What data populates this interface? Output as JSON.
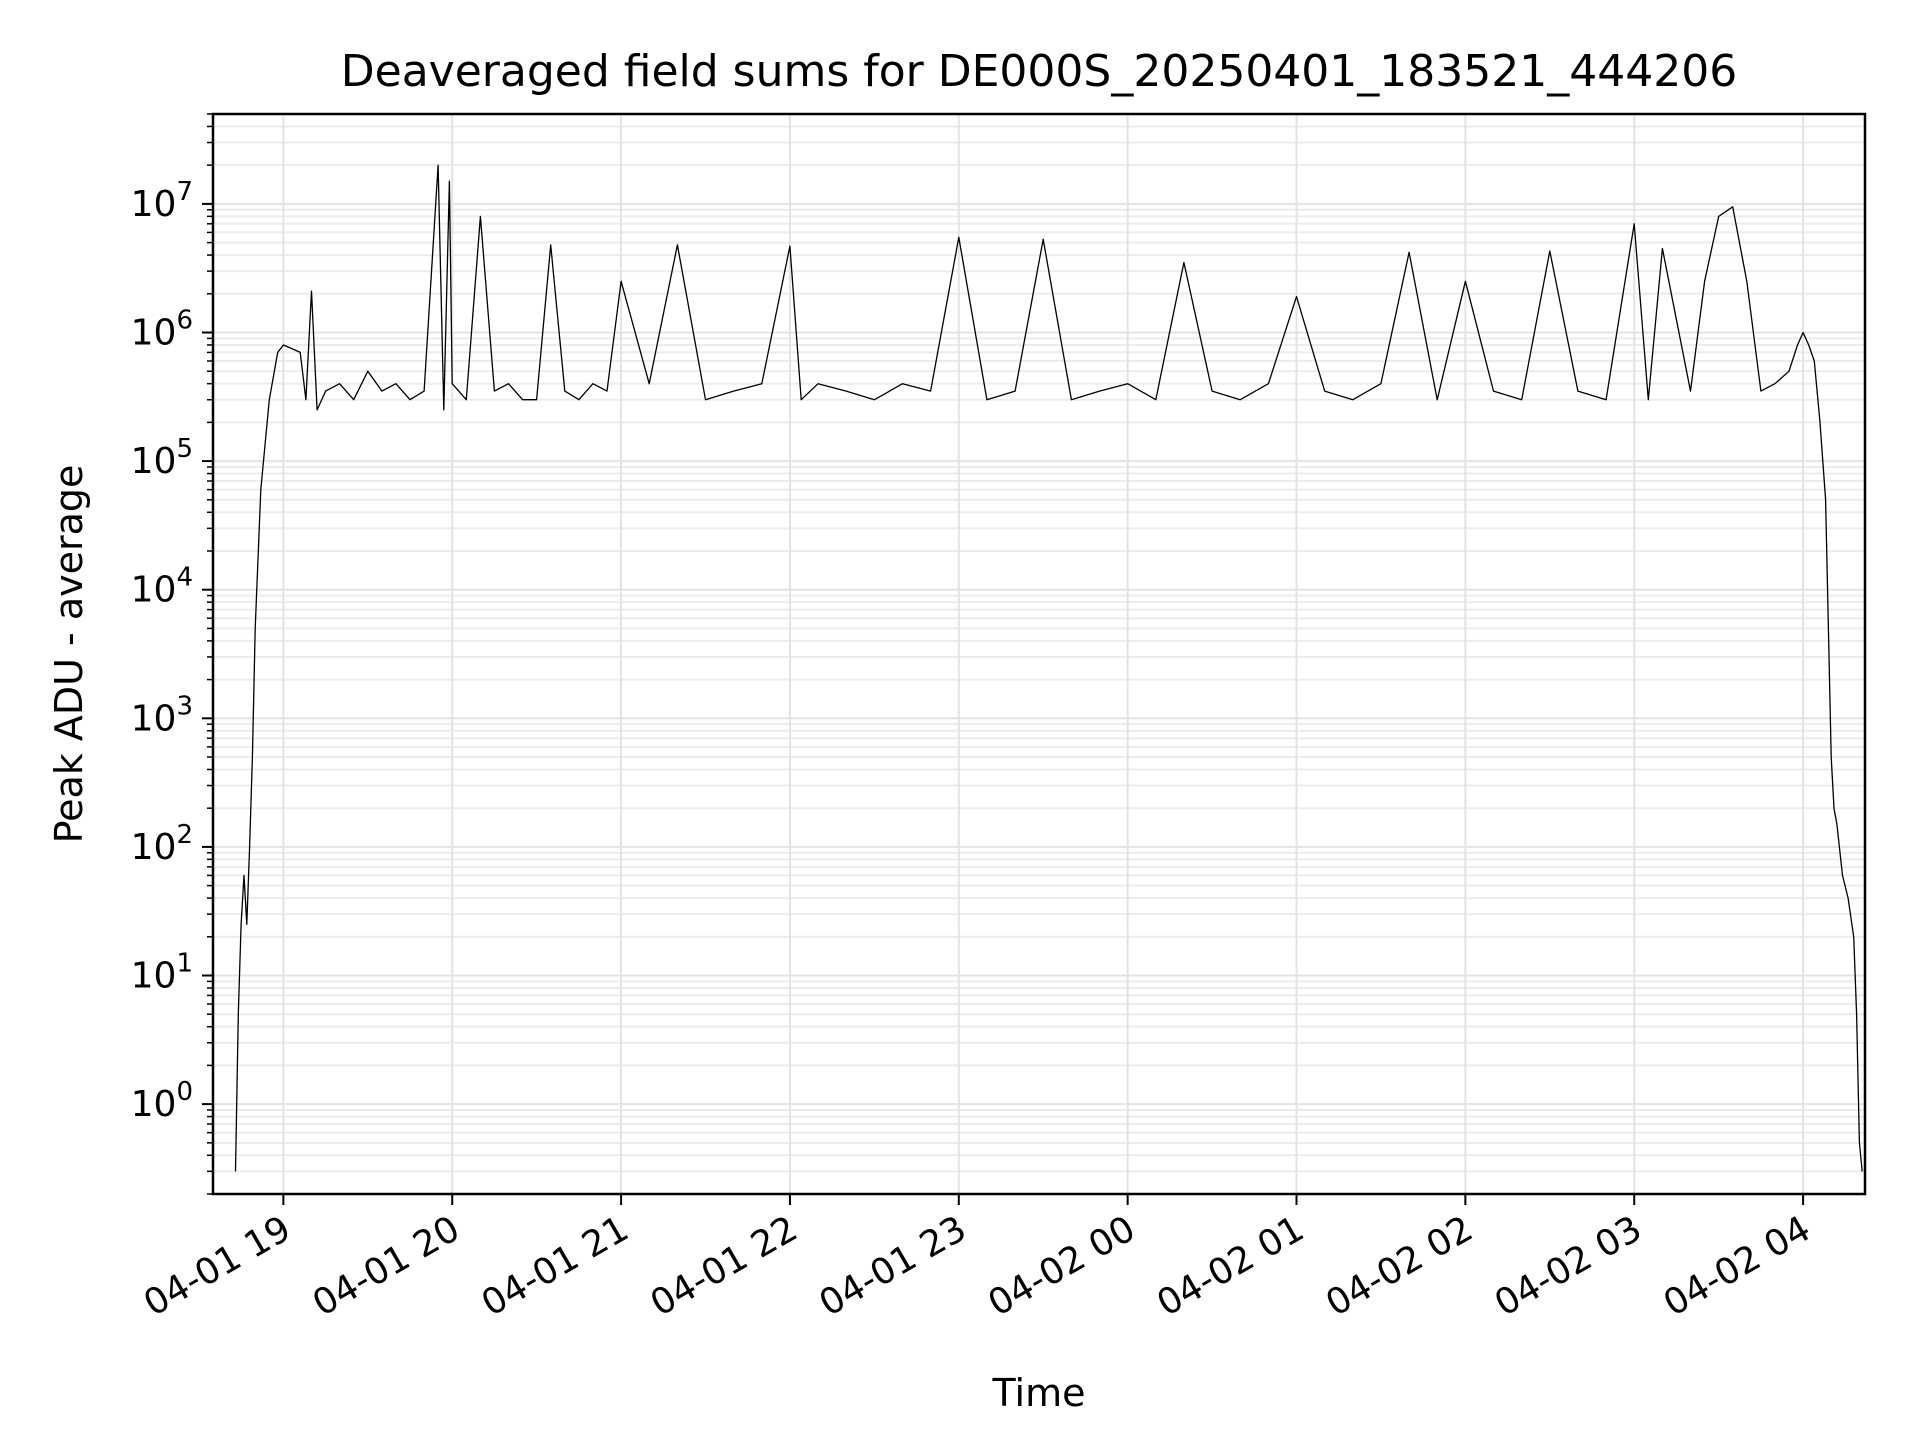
{
  "chart_data": {
    "type": "line",
    "title": "Deaveraged field sums for DE000S_20250401_183521_444206",
    "xlabel": "Time",
    "ylabel": "Peak ADU - average",
    "yscale": "log",
    "ylim": [
      0.2,
      50000000
    ],
    "xlim": [
      "2025-04-01 18:35",
      "2025-04-02 04:22"
    ],
    "grid": true,
    "x_ticks": [
      "04-01 19",
      "04-01 20",
      "04-01 21",
      "04-01 22",
      "04-01 23",
      "04-02 00",
      "04-02 01",
      "04-02 02",
      "04-02 03",
      "04-02 04"
    ],
    "y_ticks": [
      {
        "base": "10",
        "exp": "0",
        "value": 1
      },
      {
        "base": "10",
        "exp": "1",
        "value": 10
      },
      {
        "base": "10",
        "exp": "2",
        "value": 100
      },
      {
        "base": "10",
        "exp": "3",
        "value": 1000
      },
      {
        "base": "10",
        "exp": "4",
        "value": 10000
      },
      {
        "base": "10",
        "exp": "5",
        "value": 100000
      },
      {
        "base": "10",
        "exp": "6",
        "value": 1000000
      },
      {
        "base": "10",
        "exp": "7",
        "value": 10000000
      }
    ],
    "series": [
      {
        "color": "#000000",
        "x": [
          "2025-04-01 18:43",
          "2025-04-01 18:44",
          "2025-04-01 18:45",
          "2025-04-01 18:46",
          "2025-04-01 18:47",
          "2025-04-01 18:48",
          "2025-04-01 18:49",
          "2025-04-01 18:50",
          "2025-04-01 18:52",
          "2025-04-01 18:55",
          "2025-04-01 18:58",
          "2025-04-01 19:00",
          "2025-04-01 19:03",
          "2025-04-01 19:06",
          "2025-04-01 19:08",
          "2025-04-01 19:10",
          "2025-04-01 19:12",
          "2025-04-01 19:15",
          "2025-04-01 19:20",
          "2025-04-01 19:25",
          "2025-04-01 19:30",
          "2025-04-01 19:35",
          "2025-04-01 19:40",
          "2025-04-01 19:45",
          "2025-04-01 19:50",
          "2025-04-01 19:55",
          "2025-04-01 19:57",
          "2025-04-01 19:59",
          "2025-04-01 20:00",
          "2025-04-01 20:05",
          "2025-04-01 20:10",
          "2025-04-01 20:15",
          "2025-04-01 20:20",
          "2025-04-01 20:25",
          "2025-04-01 20:30",
          "2025-04-01 20:35",
          "2025-04-01 20:40",
          "2025-04-01 20:45",
          "2025-04-01 20:50",
          "2025-04-01 20:55",
          "2025-04-01 21:00",
          "2025-04-01 21:10",
          "2025-04-01 21:20",
          "2025-04-01 21:30",
          "2025-04-01 21:40",
          "2025-04-01 21:50",
          "2025-04-01 22:00",
          "2025-04-01 22:04",
          "2025-04-01 22:10",
          "2025-04-01 22:20",
          "2025-04-01 22:30",
          "2025-04-01 22:40",
          "2025-04-01 22:50",
          "2025-04-01 23:00",
          "2025-04-01 23:10",
          "2025-04-01 23:20",
          "2025-04-01 23:30",
          "2025-04-01 23:40",
          "2025-04-01 23:50",
          "2025-04-02 00:00",
          "2025-04-02 00:10",
          "2025-04-02 00:20",
          "2025-04-02 00:30",
          "2025-04-02 00:40",
          "2025-04-02 00:50",
          "2025-04-02 01:00",
          "2025-04-02 01:10",
          "2025-04-02 01:20",
          "2025-04-02 01:30",
          "2025-04-02 01:40",
          "2025-04-02 01:50",
          "2025-04-02 02:00",
          "2025-04-02 02:10",
          "2025-04-02 02:20",
          "2025-04-02 02:30",
          "2025-04-02 02:40",
          "2025-04-02 02:50",
          "2025-04-02 03:00",
          "2025-04-02 03:05",
          "2025-04-02 03:10",
          "2025-04-02 03:20",
          "2025-04-02 03:25",
          "2025-04-02 03:30",
          "2025-04-02 03:35",
          "2025-04-02 03:40",
          "2025-04-02 03:45",
          "2025-04-02 03:50",
          "2025-04-02 03:55",
          "2025-04-02 03:58",
          "2025-04-02 04:00",
          "2025-04-02 04:02",
          "2025-04-02 04:04",
          "2025-04-02 04:06",
          "2025-04-02 04:08",
          "2025-04-02 04:09",
          "2025-04-02 04:10",
          "2025-04-02 04:11",
          "2025-04-02 04:12",
          "2025-04-02 04:14",
          "2025-04-02 04:16",
          "2025-04-02 04:18",
          "2025-04-02 04:19",
          "2025-04-02 04:20",
          "2025-04-02 04:21"
        ],
        "y": [
          0.3,
          5,
          25,
          60,
          25,
          100,
          500,
          5000,
          60000,
          300000,
          700000,
          800000,
          750000,
          700000,
          300000,
          2100000,
          250000,
          350000,
          400000,
          300000,
          500000,
          350000,
          400000,
          300000,
          350000,
          20000000,
          250000,
          15000000,
          400000,
          300000,
          8000000,
          350000,
          400000,
          300000,
          300000,
          4800000,
          350000,
          300000,
          400000,
          350000,
          2500000,
          400000,
          4800000,
          300000,
          350000,
          400000,
          4700000,
          300000,
          400000,
          350000,
          300000,
          400000,
          350000,
          5500000,
          300000,
          350000,
          5300000,
          300000,
          350000,
          400000,
          300000,
          3500000,
          350000,
          300000,
          400000,
          1900000,
          350000,
          300000,
          400000,
          4200000,
          300000,
          2500000,
          350000,
          300000,
          4300000,
          350000,
          300000,
          7000000,
          300000,
          4500000,
          350000,
          2500000,
          8000000,
          9500000,
          2500000,
          350000,
          400000,
          500000,
          800000,
          1000000,
          800000,
          600000,
          200000,
          50000,
          5000,
          500,
          200,
          150,
          60,
          40,
          20,
          5,
          0.5,
          0.3
        ]
      }
    ]
  }
}
